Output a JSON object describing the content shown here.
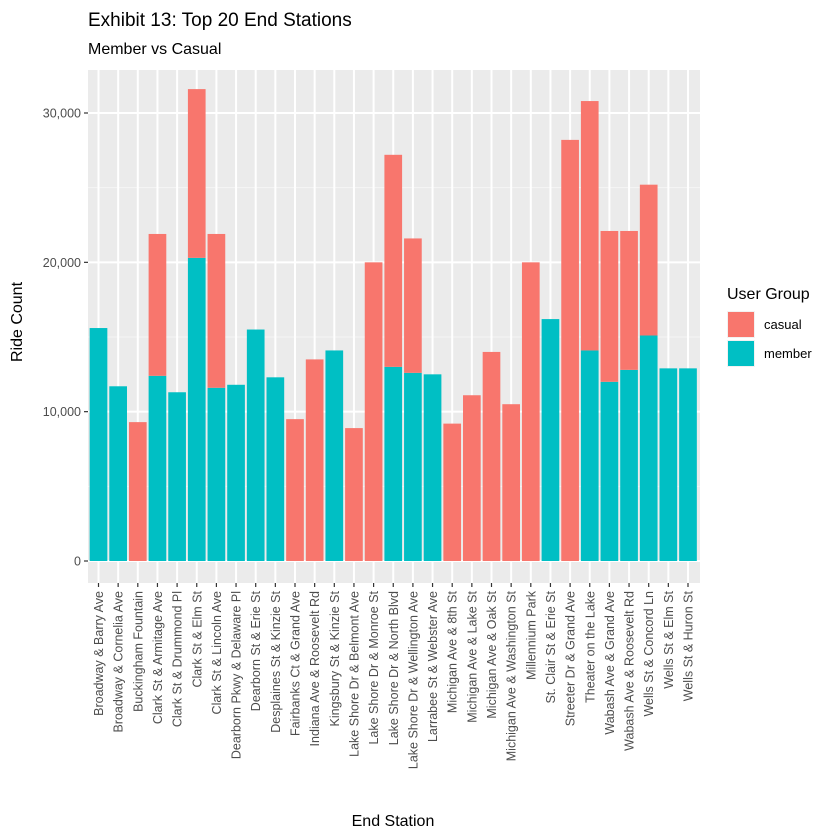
{
  "chart_data": {
    "type": "bar",
    "stacked": true,
    "title": "Exhibit 13: Top 20 End Stations",
    "subtitle": "Member vs Casual",
    "xlabel": "End Station",
    "ylabel": "Ride Count",
    "ylim": [
      0,
      33500
    ],
    "y_ticks": [
      0,
      10000,
      20000,
      30000
    ],
    "y_tick_labels": [
      "0",
      "10,000",
      "20,000",
      "30,000"
    ],
    "grid": true,
    "legend_position": "right",
    "legend_title": "User Group",
    "categories": [
      "Broadway & Barry Ave",
      "Broadway & Cornelia Ave",
      "Buckingham Fountain",
      "Clark St & Armitage Ave",
      "Clark St & Drummond Pl",
      "Clark St & Elm St",
      "Clark St & Lincoln Ave",
      "Dearborn Pkwy & Delaware Pl",
      "Dearborn St & Erie St",
      "Desplaines St & Kinzie St",
      "Fairbanks Ct & Grand Ave",
      "Indiana Ave & Roosevelt Rd",
      "Kingsbury St & Kinzie St",
      "Lake Shore Dr & Belmont Ave",
      "Lake Shore Dr & Monroe St",
      "Lake Shore Dr & North Blvd",
      "Lake Shore Dr & Wellington Ave",
      "Larrabee St & Webster Ave",
      "Michigan Ave & 8th St",
      "Michigan Ave & Lake St",
      "Michigan Ave & Oak St",
      "Michigan Ave & Washington St",
      "Millennium Park",
      "St. Clair St & Erie St",
      "Streeter Dr & Grand Ave",
      "Theater on the Lake",
      "Wabash Ave & Grand Ave",
      "Wabash Ave & Roosevelt Rd",
      "Wells St & Concord Ln",
      "Wells St & Elm St",
      "Wells St & Huron St"
    ],
    "series": [
      {
        "name": "member",
        "color": "#00BFC4",
        "values": [
          15600,
          11700,
          0,
          12400,
          11300,
          20300,
          11600,
          11800,
          15500,
          12300,
          0,
          0,
          14100,
          0,
          0,
          13000,
          12600,
          12500,
          0,
          0,
          0,
          0,
          0,
          16200,
          0,
          14100,
          12000,
          12800,
          15100,
          12900,
          12900
        ]
      },
      {
        "name": "casual",
        "color": "#F8766D",
        "values": [
          0,
          0,
          9300,
          9500,
          0,
          11300,
          10300,
          0,
          0,
          0,
          9500,
          13500,
          0,
          8900,
          20000,
          14200,
          9000,
          0,
          9200,
          11100,
          14000,
          10500,
          20000,
          0,
          28200,
          16700,
          10100,
          9300,
          10100,
          0,
          0
        ]
      }
    ]
  }
}
